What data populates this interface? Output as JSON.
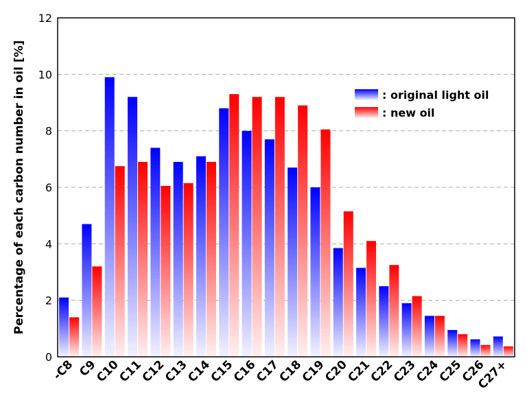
{
  "chart_data": {
    "type": "bar",
    "title": "",
    "xlabel": "",
    "ylabel": "Percentage of each carbon number in oil [%]",
    "ylim": [
      0,
      12
    ],
    "yticks": [
      0,
      2,
      4,
      6,
      8,
      10,
      12
    ],
    "grid": "horizontal dashed",
    "legend_position": "top-right",
    "categories": [
      "-C8",
      "C9",
      "C10",
      "C11",
      "C12",
      "C13",
      "C14",
      "C15",
      "C16",
      "C17",
      "C18",
      "C19",
      "C20",
      "C21",
      "C22",
      "C23",
      "C24",
      "C25",
      "C26",
      "C27+"
    ],
    "series": [
      {
        "name": ": original light oil",
        "color": "#0000ff",
        "values": [
          2.1,
          4.7,
          9.9,
          9.2,
          7.4,
          6.9,
          7.1,
          8.8,
          8.0,
          7.7,
          6.7,
          6.0,
          3.85,
          3.15,
          2.5,
          1.9,
          1.45,
          0.95,
          0.62,
          0.72
        ]
      },
      {
        "name": ": new oil",
        "color": "#ff0000",
        "values": [
          1.4,
          3.2,
          6.75,
          6.9,
          6.05,
          6.15,
          6.9,
          9.3,
          9.2,
          9.2,
          8.9,
          8.05,
          5.15,
          4.1,
          3.25,
          2.15,
          1.45,
          0.8,
          0.42,
          0.37
        ]
      }
    ]
  }
}
